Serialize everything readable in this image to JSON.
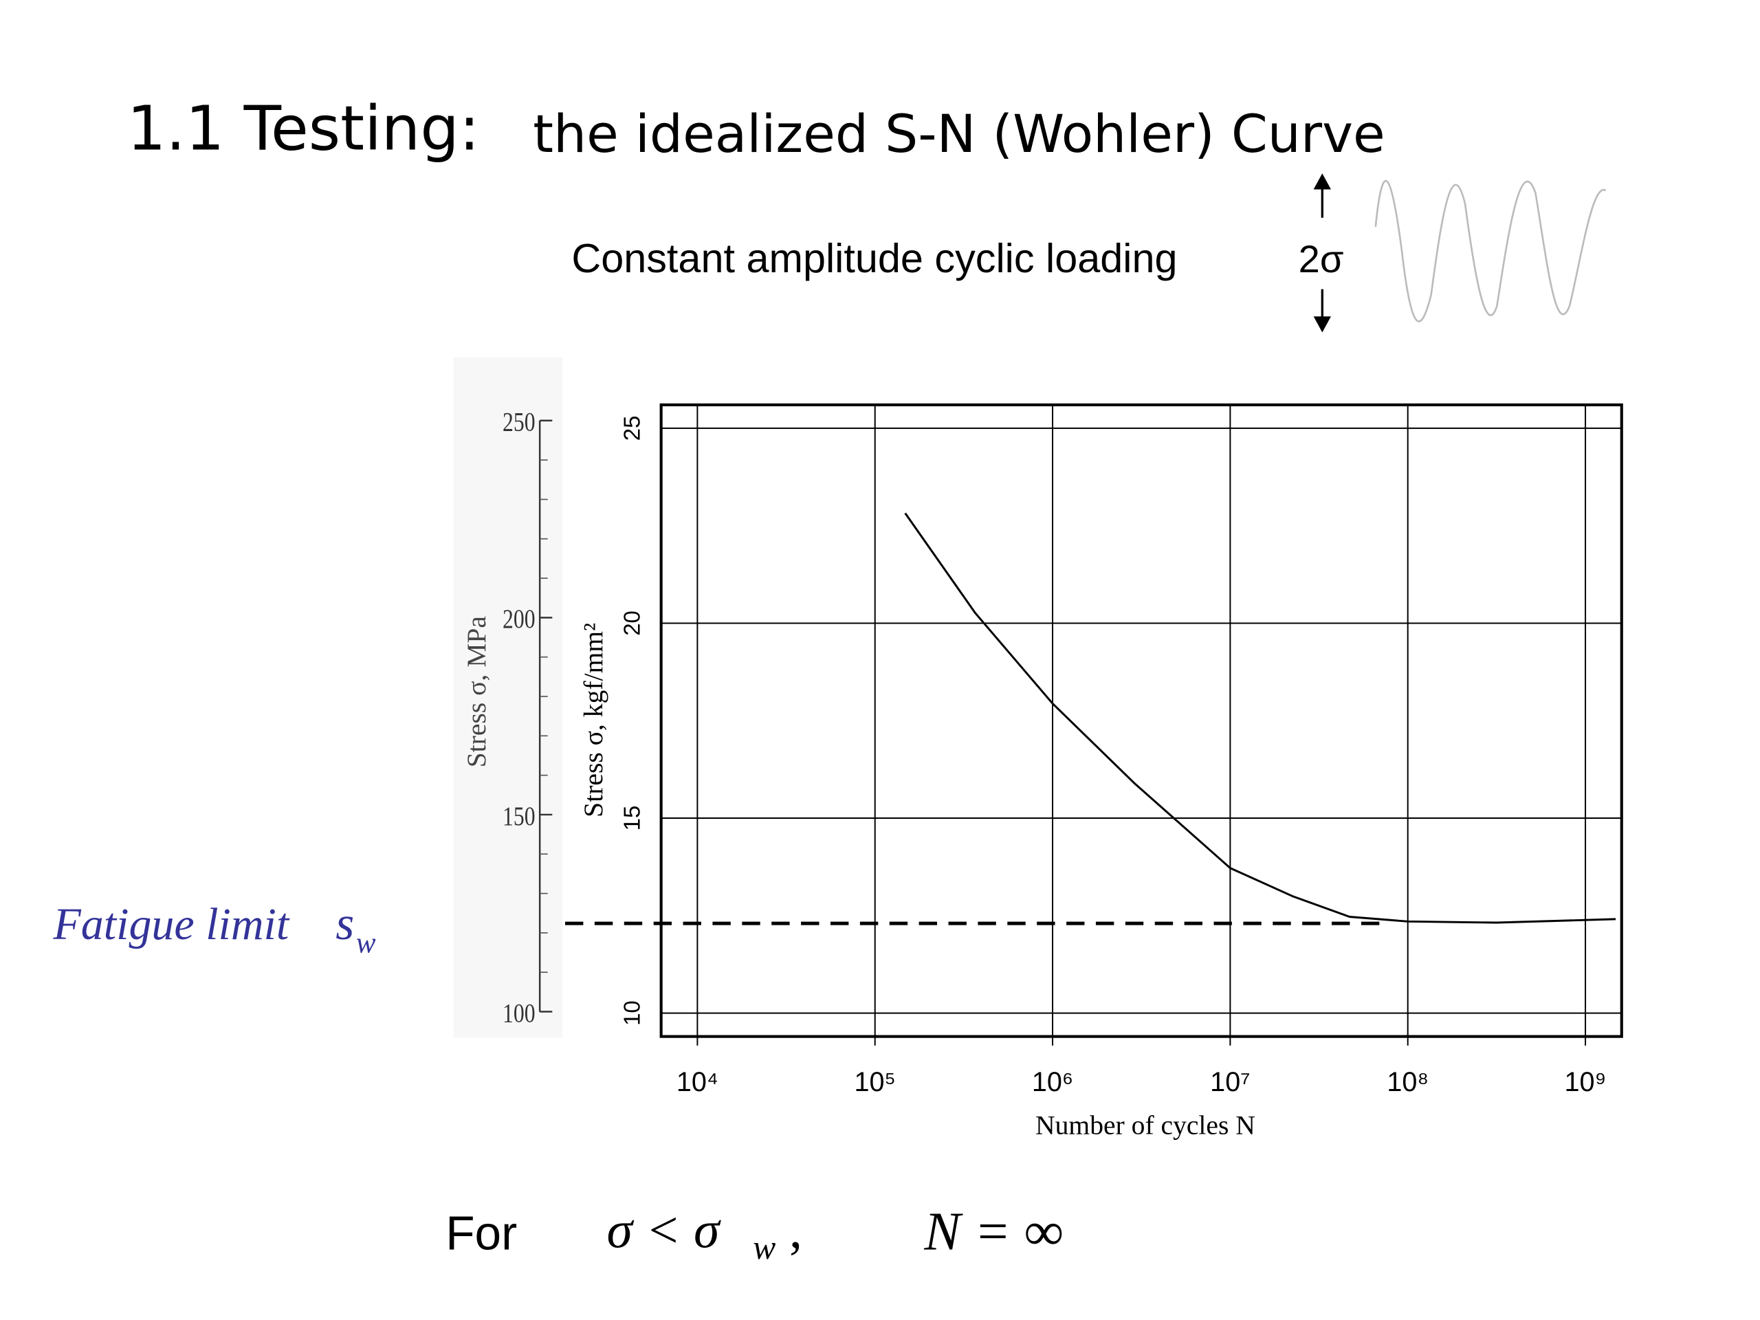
{
  "slide": {
    "title_number": "1.1 Testing:",
    "title_text": "the idealized S-N (Wohler) Curve",
    "loading_caption": "Constant amplitude cyclic loading",
    "amplitude_label": "2σ",
    "fatigue_limit_label": "Fatigue limit",
    "fatigue_limit_symbol": "s",
    "fatigue_limit_subscript": "w",
    "condition_prefix": "For",
    "condition_lhs": "σ < σ",
    "condition_subscript": "w",
    "condition_comma": ",",
    "condition_rhs": "N = ∞"
  },
  "chart_data": {
    "type": "line",
    "x_label": "Number of cycles N",
    "y_label": "Stress σ, kgf/mm²",
    "y2_label": "Stress σ, MPa",
    "xscale": "log",
    "xlim": [
      6250,
      1600000000
    ],
    "xticks": [
      {
        "value": 10000,
        "label": "10⁴"
      },
      {
        "value": 100000,
        "label": "10⁵"
      },
      {
        "value": 1000000,
        "label": "10⁶"
      },
      {
        "value": 10000000,
        "label": "10⁷"
      },
      {
        "value": 100000000,
        "label": "10⁸"
      },
      {
        "value": 1000000000,
        "label": "10⁹"
      }
    ],
    "ylim": [
      9.4,
      25.6
    ],
    "yticks": [
      10,
      15,
      20,
      25
    ],
    "y2lim": [
      93.7,
      254
    ],
    "y2ticks": [
      100,
      150,
      200,
      250
    ],
    "y2minorticks": [
      110,
      120,
      130,
      140,
      160,
      170,
      180,
      190,
      210,
      220,
      230,
      240
    ],
    "grid": true,
    "color": "#000000",
    "series": [
      {
        "color": "#000000",
        "x": [
          148000,
          367000,
          1000000,
          2880000,
          10000000,
          22400000,
          47000000,
          100000000,
          316000000,
          1480000000
        ],
        "values": [
          22.82,
          20.26,
          17.94,
          15.9,
          13.72,
          13.0,
          12.47,
          12.35,
          12.32,
          12.41
        ]
      }
    ],
    "fatigue_limit": 12.3,
    "fatigue_limit_xlim": [
      1800,
      72000000
    ],
    "fatigue_limit_color": "#000000"
  }
}
